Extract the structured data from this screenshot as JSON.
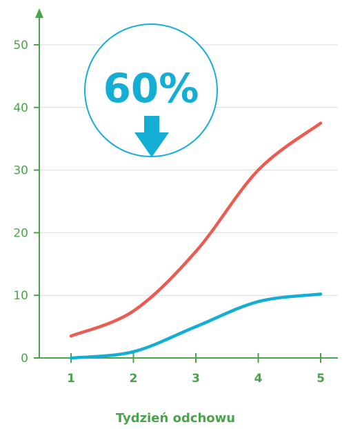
{
  "chart_data": {
    "type": "line",
    "title": "",
    "xlabel": "Tydzień odchowu",
    "ylabel": "",
    "categories": [
      "1",
      "2",
      "3",
      "4",
      "5"
    ],
    "x": [
      1,
      2,
      3,
      4,
      5
    ],
    "ylim": [
      0,
      50
    ],
    "yticks": [
      "0",
      "10",
      "20",
      "30",
      "40",
      "50"
    ],
    "grid": true,
    "series": [
      {
        "color": "#ec5b52",
        "values": [
          3.5,
          7.5,
          17,
          30,
          37.5
        ]
      },
      {
        "color": "#14aed4",
        "values": [
          0,
          1,
          5,
          9,
          10.2
        ]
      }
    ],
    "annotation": {
      "text": "60%",
      "icon": "arrow-down-icon",
      "color": "#14aed4"
    }
  }
}
